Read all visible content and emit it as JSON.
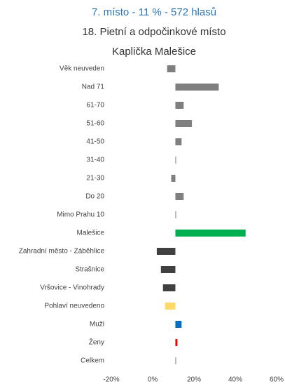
{
  "chart_data": {
    "type": "hbar",
    "title": "7. místo - 11 % - 572 hlasů",
    "subtitle": "18. Pietní a odpočinkové místo",
    "subtitle2": "Kaplička Malešice",
    "categories": [
      "Věk neuveden",
      "Nad 71",
      "61-70",
      "51-60",
      "41-50",
      "31-40",
      "21-30",
      "Do 20",
      "Mimo Prahu 10",
      "Malešice",
      "Zahradní město - Záběhlice",
      "Strašnice",
      "Vršovice - Vinohrady",
      "Pohlaví neuvedeno",
      "Muži",
      "Ženy",
      "Celkem"
    ],
    "values": [
      7,
      32,
      15,
      19,
      14,
      11,
      9,
      15,
      11,
      45,
      2,
      4,
      5,
      6,
      14,
      12,
      11
    ],
    "colors": [
      "#7f7f7f",
      "#7f7f7f",
      "#7f7f7f",
      "#7f7f7f",
      "#7f7f7f",
      "#7f7f7f",
      "#7f7f7f",
      "#7f7f7f",
      "#7f7f7f",
      "#00b050",
      "#404040",
      "#404040",
      "#404040",
      "#ffd966",
      "#0070c0",
      "#ff0000",
      "#7f7f7f"
    ],
    "xlim": [
      -20,
      60
    ],
    "xticks": [
      {
        "value": -20,
        "label": "-20%"
      },
      {
        "value": 0,
        "label": "0%"
      },
      {
        "value": 20,
        "label": "20%"
      },
      {
        "value": 40,
        "label": "40%"
      },
      {
        "value": 60,
        "label": "60%"
      }
    ],
    "grid": false
  }
}
